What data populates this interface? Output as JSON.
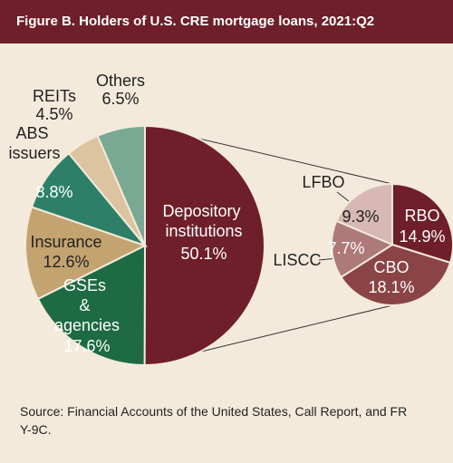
{
  "chart_data": {
    "type": "pie",
    "title": "Figure B. Holders of U.S. CRE mortgage loans, 2021:Q2",
    "categories": [
      "Depository institutions",
      "GSEs & agencies",
      "Insurance",
      "ABS issuers",
      "REITs",
      "Others"
    ],
    "values": [
      50.1,
      17.6,
      12.6,
      8.8,
      4.5,
      6.5
    ],
    "value_labels": [
      "50.1%",
      "17.6%",
      "12.6%",
      "8.8%",
      "4.5%",
      "6.5%"
    ],
    "colors": [
      "#6e1f2a",
      "#1d6a43",
      "#c3a470",
      "#2d8067",
      "#dcc4a0",
      "#79a992"
    ],
    "breakdown": {
      "categories": [
        "RBO",
        "CBO",
        "LISCC",
        "LFBO"
      ],
      "values": [
        14.9,
        18.1,
        7.7,
        9.3
      ],
      "value_labels": [
        "14.9%",
        "18.1%",
        "7.7%",
        "9.3%"
      ],
      "colors": [
        "#6e1f2a",
        "#8a4446",
        "#ae7a78",
        "#d8b8b4"
      ]
    },
    "source": "Source: Financial Accounts of the United States, Call Report, and FR Y-9C."
  }
}
